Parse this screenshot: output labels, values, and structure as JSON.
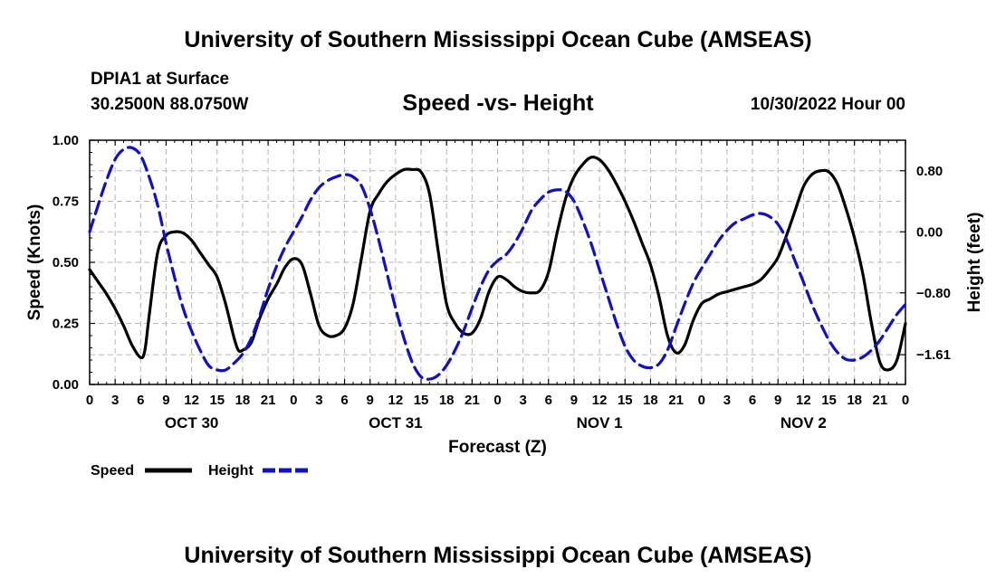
{
  "page": {
    "title": "University of Southern Mississippi Ocean Cube (AMSEAS)",
    "title_repeat": "University of Southern Mississippi Ocean Cube (AMSEAS)",
    "station": "DPIA1 at Surface",
    "coords": "30.2500N  88.0750W",
    "plot_title": "Speed -vs- Height",
    "datetime": "10/30/2022 Hour 00"
  },
  "chart_data": {
    "type": "line",
    "title": "Speed -vs- Height",
    "xlabel": "Forecast (Z)",
    "ylabel": "Speed (Knots)",
    "y2label": "Height (feet)",
    "xlim": [
      0,
      96
    ],
    "ylim": [
      0,
      1.0
    ],
    "y2lim": [
      -2.0,
      1.2
    ],
    "grid": true,
    "x_hour_ticks": [
      "0",
      "3",
      "6",
      "9",
      "12",
      "15",
      "18",
      "21",
      "0",
      "3",
      "6",
      "9",
      "12",
      "15",
      "18",
      "21",
      "0",
      "3",
      "6",
      "9",
      "12",
      "15",
      "18",
      "21",
      "0",
      "3",
      "6",
      "9",
      "12",
      "15",
      "18",
      "21",
      "0"
    ],
    "day_labels": [
      {
        "label": "OCT 30",
        "hour": 12
      },
      {
        "label": "OCT 31",
        "hour": 36
      },
      {
        "label": "NOV 1",
        "hour": 60
      },
      {
        "label": "NOV 2",
        "hour": 84
      }
    ],
    "y_ticks": [
      {
        "value": 0.0,
        "label": "0.00"
      },
      {
        "value": 0.25,
        "label": "0.25"
      },
      {
        "value": 0.5,
        "label": "0.50"
      },
      {
        "value": 0.75,
        "label": "0.75"
      },
      {
        "value": 1.0,
        "label": "1.00"
      }
    ],
    "y2_ticks": [
      {
        "value": 0.8,
        "label": "0.80"
      },
      {
        "value": 0.0,
        "label": "0.00"
      },
      {
        "value": -0.8,
        "label": "−0.80"
      },
      {
        "value": -1.61,
        "label": "−1.61"
      }
    ],
    "legend": {
      "placement": "bottom-left",
      "speed_label": "Speed",
      "height_label": "Height"
    },
    "series": [
      {
        "name": "Speed",
        "axis": "left",
        "color": "#000000",
        "style": "solid",
        "points": [
          [
            0,
            0.47
          ],
          [
            1,
            0.42
          ],
          [
            2,
            0.37
          ],
          [
            3,
            0.31
          ],
          [
            4,
            0.24
          ],
          [
            5,
            0.16
          ],
          [
            6,
            0.11
          ],
          [
            6.5,
            0.14
          ],
          [
            7,
            0.28
          ],
          [
            8,
            0.54
          ],
          [
            9,
            0.61
          ],
          [
            10,
            0.625
          ],
          [
            11,
            0.62
          ],
          [
            12,
            0.59
          ],
          [
            13,
            0.54
          ],
          [
            14,
            0.49
          ],
          [
            15,
            0.44
          ],
          [
            16,
            0.33
          ],
          [
            17,
            0.19
          ],
          [
            17.5,
            0.14
          ],
          [
            18,
            0.14
          ],
          [
            19,
            0.17
          ],
          [
            20,
            0.27
          ],
          [
            21,
            0.35
          ],
          [
            22,
            0.41
          ],
          [
            23,
            0.48
          ],
          [
            24,
            0.515
          ],
          [
            25,
            0.49
          ],
          [
            26,
            0.37
          ],
          [
            27,
            0.24
          ],
          [
            28,
            0.2
          ],
          [
            29,
            0.2
          ],
          [
            30,
            0.23
          ],
          [
            31,
            0.33
          ],
          [
            32,
            0.52
          ],
          [
            33,
            0.71
          ],
          [
            34,
            0.78
          ],
          [
            35,
            0.83
          ],
          [
            36,
            0.86
          ],
          [
            37,
            0.88
          ],
          [
            38,
            0.88
          ],
          [
            39,
            0.87
          ],
          [
            40,
            0.78
          ],
          [
            41,
            0.55
          ],
          [
            42,
            0.33
          ],
          [
            43,
            0.25
          ],
          [
            44,
            0.21
          ],
          [
            45,
            0.21
          ],
          [
            46,
            0.27
          ],
          [
            47,
            0.38
          ],
          [
            48,
            0.44
          ],
          [
            49,
            0.43
          ],
          [
            50,
            0.4
          ],
          [
            51,
            0.38
          ],
          [
            52,
            0.375
          ],
          [
            53,
            0.385
          ],
          [
            54,
            0.46
          ],
          [
            55,
            0.62
          ],
          [
            56,
            0.76
          ],
          [
            57,
            0.85
          ],
          [
            58,
            0.9
          ],
          [
            59,
            0.93
          ],
          [
            60,
            0.92
          ],
          [
            61,
            0.88
          ],
          [
            62,
            0.82
          ],
          [
            63,
            0.75
          ],
          [
            64,
            0.67
          ],
          [
            65,
            0.58
          ],
          [
            66,
            0.49
          ],
          [
            67,
            0.36
          ],
          [
            68,
            0.2
          ],
          [
            69,
            0.13
          ],
          [
            70,
            0.16
          ],
          [
            71,
            0.26
          ],
          [
            72,
            0.33
          ],
          [
            73,
            0.35
          ],
          [
            74,
            0.37
          ],
          [
            75,
            0.38
          ],
          [
            76,
            0.39
          ],
          [
            77,
            0.4
          ],
          [
            78,
            0.41
          ],
          [
            79,
            0.43
          ],
          [
            80,
            0.47
          ],
          [
            81,
            0.52
          ],
          [
            82,
            0.61
          ],
          [
            83,
            0.71
          ],
          [
            84,
            0.81
          ],
          [
            85,
            0.86
          ],
          [
            86,
            0.875
          ],
          [
            87,
            0.87
          ],
          [
            88,
            0.82
          ],
          [
            89,
            0.72
          ],
          [
            90,
            0.6
          ],
          [
            91,
            0.45
          ],
          [
            92,
            0.25
          ],
          [
            93,
            0.09
          ],
          [
            94,
            0.06
          ],
          [
            95,
            0.1
          ],
          [
            96,
            0.25
          ]
        ]
      },
      {
        "name": "Height",
        "axis": "right",
        "color": "#1010cc",
        "style": "dashed",
        "points": [
          [
            0,
            0.0
          ],
          [
            1,
            0.35
          ],
          [
            2,
            0.68
          ],
          [
            3,
            0.95
          ],
          [
            4,
            1.08
          ],
          [
            5,
            1.1
          ],
          [
            6,
            1.0
          ],
          [
            7,
            0.72
          ],
          [
            8,
            0.35
          ],
          [
            9,
            -0.15
          ],
          [
            10,
            -0.6
          ],
          [
            11,
            -1.0
          ],
          [
            12,
            -1.3
          ],
          [
            13,
            -1.55
          ],
          [
            14,
            -1.75
          ],
          [
            15,
            -1.81
          ],
          [
            16,
            -1.81
          ],
          [
            17,
            -1.72
          ],
          [
            18,
            -1.6
          ],
          [
            19,
            -1.4
          ],
          [
            20,
            -1.1
          ],
          [
            21,
            -0.75
          ],
          [
            22,
            -0.45
          ],
          [
            23,
            -0.2
          ],
          [
            24,
            0.0
          ],
          [
            25,
            0.2
          ],
          [
            26,
            0.42
          ],
          [
            27,
            0.58
          ],
          [
            28,
            0.67
          ],
          [
            29,
            0.72
          ],
          [
            30,
            0.75
          ],
          [
            31,
            0.72
          ],
          [
            32,
            0.6
          ],
          [
            33,
            0.3
          ],
          [
            34,
            -0.1
          ],
          [
            35,
            -0.55
          ],
          [
            36,
            -1.0
          ],
          [
            37,
            -1.4
          ],
          [
            38,
            -1.72
          ],
          [
            39,
            -1.9
          ],
          [
            40,
            -1.93
          ],
          [
            41,
            -1.88
          ],
          [
            42,
            -1.75
          ],
          [
            43,
            -1.55
          ],
          [
            44,
            -1.3
          ],
          [
            45,
            -1.0
          ],
          [
            46,
            -0.72
          ],
          [
            47,
            -0.5
          ],
          [
            48,
            -0.38
          ],
          [
            49,
            -0.3
          ],
          [
            50,
            -0.15
          ],
          [
            51,
            0.05
          ],
          [
            52,
            0.28
          ],
          [
            53,
            0.42
          ],
          [
            54,
            0.52
          ],
          [
            55,
            0.55
          ],
          [
            56,
            0.53
          ],
          [
            57,
            0.4
          ],
          [
            58,
            0.15
          ],
          [
            59,
            -0.15
          ],
          [
            60,
            -0.5
          ],
          [
            61,
            -0.85
          ],
          [
            62,
            -1.2
          ],
          [
            63,
            -1.5
          ],
          [
            64,
            -1.68
          ],
          [
            65,
            -1.76
          ],
          [
            66,
            -1.78
          ],
          [
            67,
            -1.73
          ],
          [
            68,
            -1.55
          ],
          [
            69,
            -1.25
          ],
          [
            70,
            -0.95
          ],
          [
            71,
            -0.68
          ],
          [
            72,
            -0.48
          ],
          [
            73,
            -0.3
          ],
          [
            74,
            -0.12
          ],
          [
            75,
            0.02
          ],
          [
            76,
            0.12
          ],
          [
            77,
            0.17
          ],
          [
            78,
            0.22
          ],
          [
            79,
            0.24
          ],
          [
            80,
            0.2
          ],
          [
            81,
            0.1
          ],
          [
            82,
            -0.1
          ],
          [
            83,
            -0.38
          ],
          [
            84,
            -0.66
          ],
          [
            85,
            -0.95
          ],
          [
            86,
            -1.2
          ],
          [
            87,
            -1.42
          ],
          [
            88,
            -1.58
          ],
          [
            89,
            -1.67
          ],
          [
            90,
            -1.68
          ],
          [
            91,
            -1.64
          ],
          [
            92,
            -1.55
          ],
          [
            93,
            -1.42
          ],
          [
            94,
            -1.25
          ],
          [
            95,
            -1.08
          ],
          [
            96,
            -0.95
          ]
        ]
      }
    ]
  }
}
